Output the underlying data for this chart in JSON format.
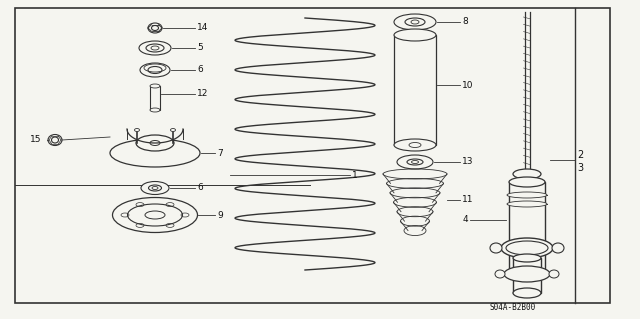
{
  "bg_color": "#f5f5f0",
  "border_color": "#555555",
  "line_color": "#333333",
  "text_color": "#111111",
  "diagram_code": "S04A-B2B00",
  "figsize": [
    6.4,
    3.19
  ],
  "dpi": 100
}
